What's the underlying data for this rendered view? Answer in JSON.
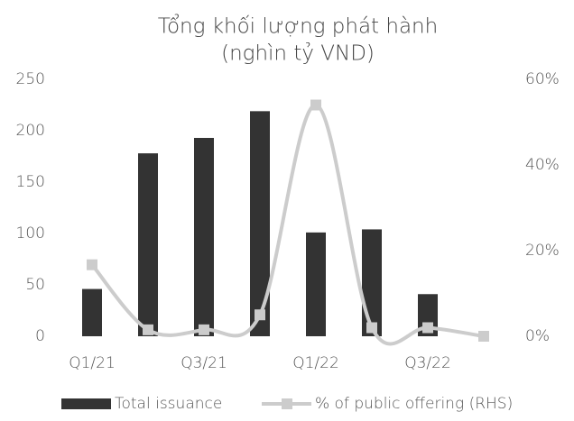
{
  "chart_data": {
    "type": "bar_line",
    "title": [
      "Tổng khối lượng phát hành",
      "(nghìn tỷ VND)"
    ],
    "categories": [
      "Q1/21",
      null,
      "Q3/21",
      null,
      "Q1/22",
      null,
      "Q3/22",
      null
    ],
    "series": [
      {
        "name": "Total issuance",
        "color": "#333333",
        "type": "bar",
        "values": [
          46,
          178,
          193,
          219,
          101,
          104,
          41,
          0
        ]
      },
      {
        "name": "% of public offering (RHS)",
        "color": "#cccccc",
        "type": "line",
        "axis": "y2",
        "values": [
          16.7,
          1.5,
          1.5,
          5,
          54,
          2,
          2,
          0
        ]
      }
    ],
    "ylim": [
      0,
      250
    ],
    "yticks": [
      0,
      50,
      100,
      150,
      200,
      250
    ],
    "y2lim": [
      0,
      60
    ],
    "y2ticks": [
      {
        "value": 0,
        "label": "0%"
      },
      {
        "value": 20,
        "label": "20%"
      },
      {
        "value": 40,
        "label": "40%"
      },
      {
        "value": 60,
        "label": "60%"
      }
    ],
    "legend": "bottom"
  }
}
